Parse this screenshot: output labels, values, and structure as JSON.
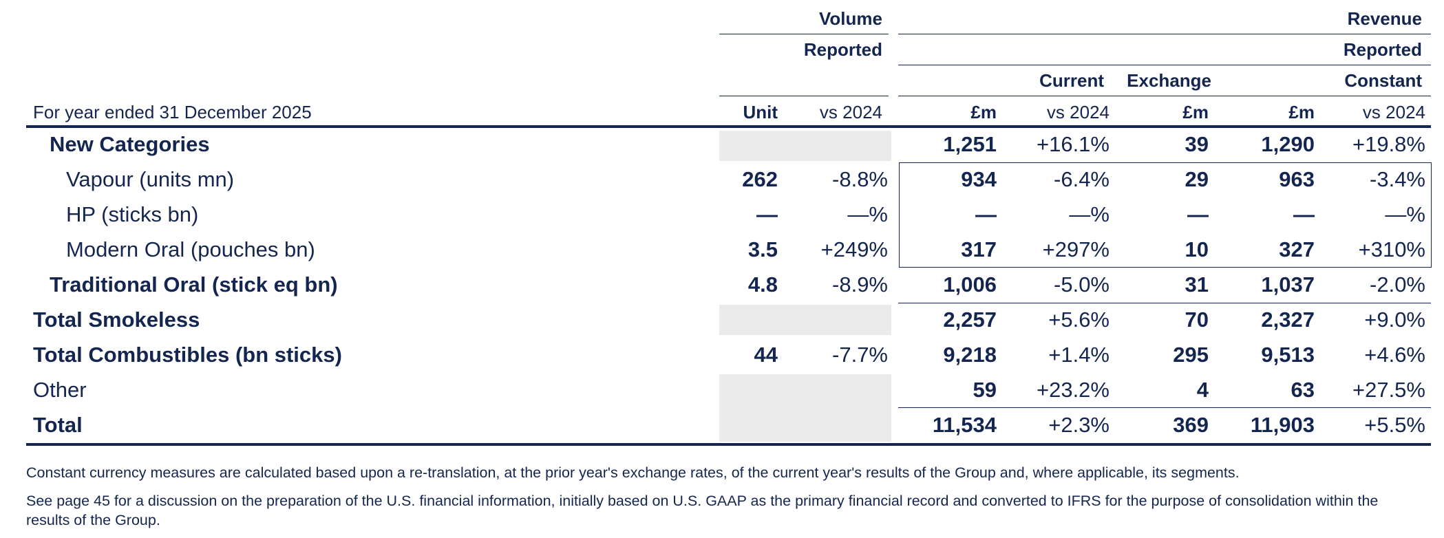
{
  "headers": {
    "volume": "Volume",
    "revenue": "Revenue",
    "reported_volume": "Reported",
    "reported_revenue": "Reported",
    "current": "Current",
    "exchange": "Exchange",
    "constant": "Constant",
    "period": "For year ended 31 December 2025",
    "unit": "Unit",
    "vs_volume": "vs 2024",
    "fm_current": "£m",
    "vs_current": "vs 2024",
    "fm_exchange": "£m",
    "fm_constant": "£m",
    "vs_constant": "vs 2024"
  },
  "rows": [
    {
      "label": "New Categories",
      "unit": "",
      "vol_vs": "",
      "cur_fm": "1,251",
      "cur_vs": "+16.1%",
      "exch": "39",
      "const_fm": "1,290",
      "const_vs": "+19.8%"
    },
    {
      "label": "Vapour (units mn)",
      "unit": "262",
      "vol_vs": "-8.8%",
      "cur_fm": "934",
      "cur_vs": "-6.4%",
      "exch": "29",
      "const_fm": "963",
      "const_vs": "-3.4%"
    },
    {
      "label": "HP (sticks bn)",
      "unit": "—",
      "vol_vs": "—%",
      "cur_fm": "—",
      "cur_vs": "—%",
      "exch": "—",
      "const_fm": "—",
      "const_vs": "—%"
    },
    {
      "label": "Modern Oral (pouches bn)",
      "unit": "3.5",
      "vol_vs": "+249%",
      "cur_fm": "317",
      "cur_vs": "+297%",
      "exch": "10",
      "const_fm": "327",
      "const_vs": "+310%"
    },
    {
      "label": "Traditional Oral (stick eq bn)",
      "unit": "4.8",
      "vol_vs": "-8.9%",
      "cur_fm": "1,006",
      "cur_vs": "-5.0%",
      "exch": "31",
      "const_fm": "1,037",
      "const_vs": "-2.0%"
    },
    {
      "label": "Total Smokeless",
      "unit": "",
      "vol_vs": "",
      "cur_fm": "2,257",
      "cur_vs": "+5.6%",
      "exch": "70",
      "const_fm": "2,327",
      "const_vs": "+9.0%"
    },
    {
      "label": "Total Combustibles (bn sticks)",
      "unit": "44",
      "vol_vs": "-7.7%",
      "cur_fm": "9,218",
      "cur_vs": "+1.4%",
      "exch": "295",
      "const_fm": "9,513",
      "const_vs": "+4.6%"
    },
    {
      "label": "Other",
      "unit": "",
      "vol_vs": "",
      "cur_fm": "59",
      "cur_vs": "+23.2%",
      "exch": "4",
      "const_fm": "63",
      "const_vs": "+27.5%"
    },
    {
      "label": "Total",
      "unit": "",
      "vol_vs": "",
      "cur_fm": "11,534",
      "cur_vs": "+2.3%",
      "exch": "369",
      "const_fm": "11,903",
      "const_vs": "+5.5%"
    }
  ],
  "footnotes": [
    "Constant currency measures are calculated based upon a re-translation, at the prior year's exchange rates, of the current year's results of the Group and, where applicable, its segments.",
    "See page 45 for a discussion on the preparation of the U.S. financial information, initially based on U.S. GAAP as the primary financial record and converted to IFRS for the purpose of consolidation within the results of the Group."
  ]
}
